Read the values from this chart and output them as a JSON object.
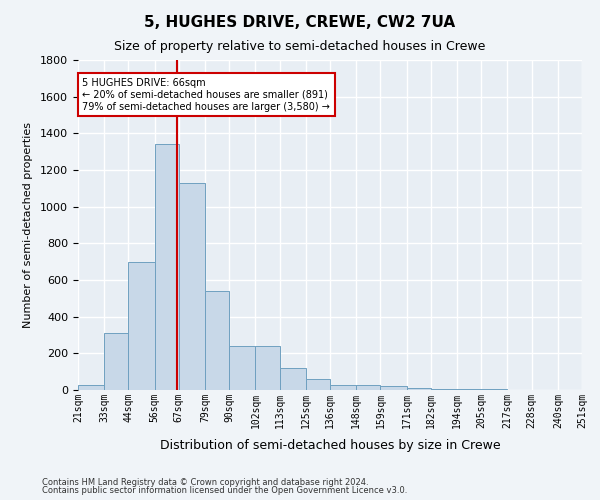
{
  "title": "5, HUGHES DRIVE, CREWE, CW2 7UA",
  "subtitle": "Size of property relative to semi-detached houses in Crewe",
  "xlabel": "Distribution of semi-detached houses by size in Crewe",
  "ylabel": "Number of semi-detached properties",
  "annotation_title": "5 HUGHES DRIVE: 66sqm",
  "annotation_line1": "← 20% of semi-detached houses are smaller (891)",
  "annotation_line2": "79% of semi-detached houses are larger (3,580) →",
  "property_size": 66,
  "bar_color": "#c8d8e8",
  "bar_edge_color": "#6fa0c0",
  "vline_color": "#cc0000",
  "annotation_box_color": "#cc0000",
  "background_color": "#e8eef4",
  "grid_color": "#ffffff",
  "categories": [
    "21sqm",
    "33sqm",
    "44sqm",
    "56sqm",
    "67sqm",
    "79sqm",
    "90sqm",
    "102sqm",
    "113sqm",
    "125sqm",
    "136sqm",
    "148sqm",
    "159sqm",
    "171sqm",
    "182sqm",
    "194sqm",
    "205sqm",
    "217sqm",
    "228sqm",
    "240sqm",
    "251sqm"
  ],
  "bin_edges": [
    21,
    33,
    44,
    56,
    67,
    79,
    90,
    102,
    113,
    125,
    136,
    148,
    159,
    171,
    182,
    194,
    205,
    217,
    228,
    240,
    251
  ],
  "values": [
    30,
    310,
    700,
    1340,
    1130,
    540,
    240,
    240,
    120,
    60,
    30,
    30,
    20,
    10,
    5,
    5,
    3,
    2,
    1,
    1
  ],
  "ylim": [
    0,
    1800
  ],
  "yticks": [
    0,
    200,
    400,
    600,
    800,
    1000,
    1200,
    1400,
    1600,
    1800
  ],
  "footnote1": "Contains HM Land Registry data © Crown copyright and database right 2024.",
  "footnote2": "Contains public sector information licensed under the Open Government Licence v3.0."
}
